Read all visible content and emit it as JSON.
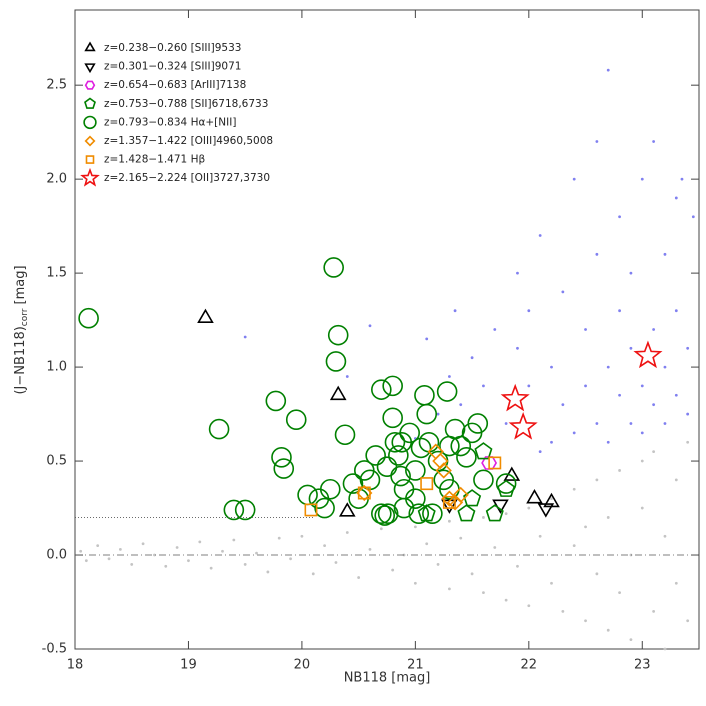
{
  "chart_data": {
    "type": "scatter",
    "x_label": "NB118 [mag]",
    "y_label": {
      "main": "(J−NB118)",
      "sub": "corr",
      "unit": "[mag]"
    },
    "xlim": [
      18,
      23.5
    ],
    "ylim": [
      -0.5,
      2.9
    ],
    "xticks": [
      18,
      19,
      20,
      21,
      22,
      23
    ],
    "yticks": [
      -0.5,
      {
        "value": 0,
        "label": "0.0"
      },
      0.5,
      {
        "value": 1,
        "label": "1.0"
      },
      1.5,
      {
        "value": 2,
        "label": "2.0"
      },
      2.5
    ],
    "hlines": [
      {
        "y": 0.2,
        "x_end": 20.1,
        "style": "dotted"
      },
      {
        "y": 0,
        "style": "dashdot"
      }
    ],
    "series": [
      {
        "color": "#c4c4c4",
        "marker": "dot",
        "x": [
          18.05,
          18.1,
          18.2,
          18.3,
          18.4,
          18.5,
          18.6,
          18.7,
          18.8,
          18.9,
          19.0,
          19.1,
          19.2,
          19.3,
          19.4,
          19.5,
          19.6,
          19.7,
          19.8,
          19.9,
          20.0,
          20.1,
          20.2,
          20.3,
          20.4,
          20.5,
          20.6,
          20.7,
          20.8,
          20.9,
          21.0,
          21.0,
          21.1,
          21.2,
          21.3,
          21.3,
          21.4,
          21.5,
          21.6,
          21.6,
          21.7,
          21.8,
          21.8,
          21.9,
          22.0,
          22.0,
          22.1,
          22.2,
          22.2,
          22.3,
          22.4,
          22.4,
          22.5,
          22.5,
          22.6,
          22.6,
          22.7,
          22.7,
          22.8,
          22.8,
          22.9,
          22.9,
          23.0,
          23.0,
          23.1,
          23.1,
          23.2,
          23.2,
          23.3,
          23.3,
          23.4,
          23.4
        ],
        "y": [
          0.02,
          -0.03,
          0.05,
          -0.02,
          0.03,
          -0.05,
          0.06,
          0.0,
          -0.06,
          0.04,
          -0.03,
          0.07,
          -0.07,
          0.02,
          0.08,
          -0.05,
          0.01,
          -0.09,
          0.09,
          -0.02,
          0.1,
          -0.1,
          0.05,
          -0.04,
          0.12,
          -0.12,
          0.03,
          0.14,
          -0.08,
          0.0,
          0.15,
          -0.15,
          0.06,
          -0.05,
          0.18,
          -0.18,
          0.09,
          -0.1,
          0.2,
          -0.2,
          0.04,
          0.22,
          -0.24,
          -0.06,
          0.25,
          -0.27,
          0.1,
          -0.15,
          0.3,
          -0.3,
          0.05,
          0.35,
          -0.35,
          0.15,
          -0.1,
          0.4,
          -0.4,
          0.2,
          0.45,
          -0.2,
          0.0,
          -0.45,
          0.5,
          0.25,
          -0.3,
          0.55,
          -0.5,
          0.1,
          0.4,
          -0.15,
          0.6,
          -0.35
        ]
      },
      {
        "color": "#8080f0",
        "marker": "dot",
        "x": [
          21.0,
          21.2,
          21.3,
          21.4,
          21.5,
          21.6,
          21.7,
          21.8,
          21.9,
          21.9,
          22.0,
          22.0,
          22.1,
          22.1,
          22.2,
          22.2,
          22.3,
          22.3,
          22.4,
          22.4,
          22.5,
          22.5,
          22.6,
          22.6,
          22.6,
          22.7,
          22.7,
          22.7,
          22.8,
          22.8,
          22.8,
          22.9,
          22.9,
          22.9,
          23.0,
          23.0,
          23.0,
          23.1,
          23.1,
          23.1,
          23.2,
          23.2,
          23.2,
          23.3,
          23.3,
          23.3,
          23.4,
          23.4,
          23.45,
          19.5,
          20.4,
          20.6,
          21.35,
          21.1,
          23.35
        ],
        "y": [
          0.62,
          0.75,
          0.95,
          0.8,
          1.05,
          0.9,
          1.2,
          0.7,
          1.1,
          1.5,
          0.9,
          1.3,
          0.55,
          1.7,
          1.0,
          0.6,
          1.4,
          0.8,
          2.0,
          0.65,
          1.2,
          0.9,
          1.6,
          0.7,
          2.2,
          1.0,
          0.6,
          2.58,
          1.3,
          0.85,
          1.8,
          0.7,
          1.1,
          1.5,
          0.9,
          2.0,
          0.65,
          1.2,
          0.8,
          2.2,
          1.0,
          0.7,
          1.6,
          0.85,
          1.3,
          1.9,
          0.75,
          1.1,
          1.8,
          1.16,
          0.95,
          1.22,
          1.3,
          1.15,
          2.0
        ]
      },
      {
        "name": "z=0.238−0.260  [SIII]9533",
        "color": "#000000",
        "marker": "triangle-up",
        "x": [
          19.15,
          20.32,
          20.4,
          21.85,
          22.05,
          22.2
        ],
        "y": [
          1.26,
          0.85,
          0.23,
          0.42,
          0.3,
          0.28
        ]
      },
      {
        "name": "z=0.301−0.324  [SIII]9071",
        "color": "#000000",
        "marker": "triangle-down",
        "x": [
          22.15,
          21.75,
          21.3
        ],
        "y": [
          0.25,
          0.27,
          0.27
        ]
      },
      {
        "name": "z=0.654−0.683  [ArIII]7138",
        "color": "#e020e0",
        "marker": "hexagon",
        "x": [
          21.65
        ],
        "y": [
          0.49
        ]
      },
      {
        "name": "z=0.753−0.788  [SII]6718,6733",
        "color": "#008000",
        "marker": "pentagon",
        "x": [
          21.1,
          21.45,
          21.7,
          21.8,
          21.5,
          21.6
        ],
        "y": [
          0.22,
          0.22,
          0.22,
          0.35,
          0.3,
          0.55
        ]
      },
      {
        "name": "z=0.793−0.834  Hα+[NII]",
        "color": "#008000",
        "marker": "circle",
        "x": [
          18.12,
          19.27,
          19.4,
          19.5,
          19.77,
          19.82,
          19.84,
          19.95,
          20.05,
          20.15,
          20.2,
          20.25,
          20.28,
          20.3,
          20.32,
          20.38,
          20.45,
          20.5,
          20.55,
          20.6,
          20.65,
          20.7,
          20.7,
          20.73,
          20.76,
          20.75,
          20.8,
          20.8,
          20.82,
          20.85,
          20.87,
          20.9,
          20.95,
          21.0,
          21.05,
          21.08,
          21.1,
          21.12,
          21.15,
          21.2,
          21.25,
          21.28,
          21.3,
          21.35,
          21.4,
          21.45,
          21.5,
          21.55,
          21.3,
          21.0,
          21.6,
          21.8,
          20.88,
          21.03,
          20.9
        ],
        "y": [
          1.26,
          0.67,
          0.24,
          0.24,
          0.82,
          0.52,
          0.46,
          0.72,
          0.32,
          0.3,
          0.25,
          0.35,
          1.53,
          1.03,
          1.17,
          0.64,
          0.38,
          0.3,
          0.45,
          0.4,
          0.53,
          0.88,
          0.22,
          0.21,
          0.22,
          0.47,
          0.9,
          0.73,
          0.6,
          0.53,
          0.42,
          0.35,
          0.65,
          0.45,
          0.57,
          0.85,
          0.75,
          0.6,
          0.22,
          0.5,
          0.4,
          0.87,
          0.35,
          0.67,
          0.58,
          0.52,
          0.65,
          0.7,
          0.58,
          0.3,
          0.4,
          0.38,
          0.6,
          0.22,
          0.25
        ]
      },
      {
        "name": "z=1.357−1.422  [OIII]4960,5008",
        "color": "#f08c00",
        "marker": "diamond",
        "x": [
          20.55,
          21.18,
          21.22,
          21.25,
          21.3,
          21.35,
          21.4
        ],
        "y": [
          0.33,
          0.55,
          0.5,
          0.45,
          0.3,
          0.28,
          0.32
        ]
      },
      {
        "name": "z=1.428−1.471  Hβ",
        "color": "#f08c00",
        "marker": "square",
        "x": [
          20.08,
          20.55,
          21.1,
          21.3,
          21.7
        ],
        "y": [
          0.24,
          0.33,
          0.38,
          0.28,
          0.49
        ]
      },
      {
        "name": "z=2.165−2.224  [OII]3727,3730",
        "color": "#ee1111",
        "marker": "star",
        "x": [
          21.88,
          21.95,
          23.05
        ],
        "y": [
          0.83,
          0.68,
          1.06
        ]
      }
    ]
  }
}
